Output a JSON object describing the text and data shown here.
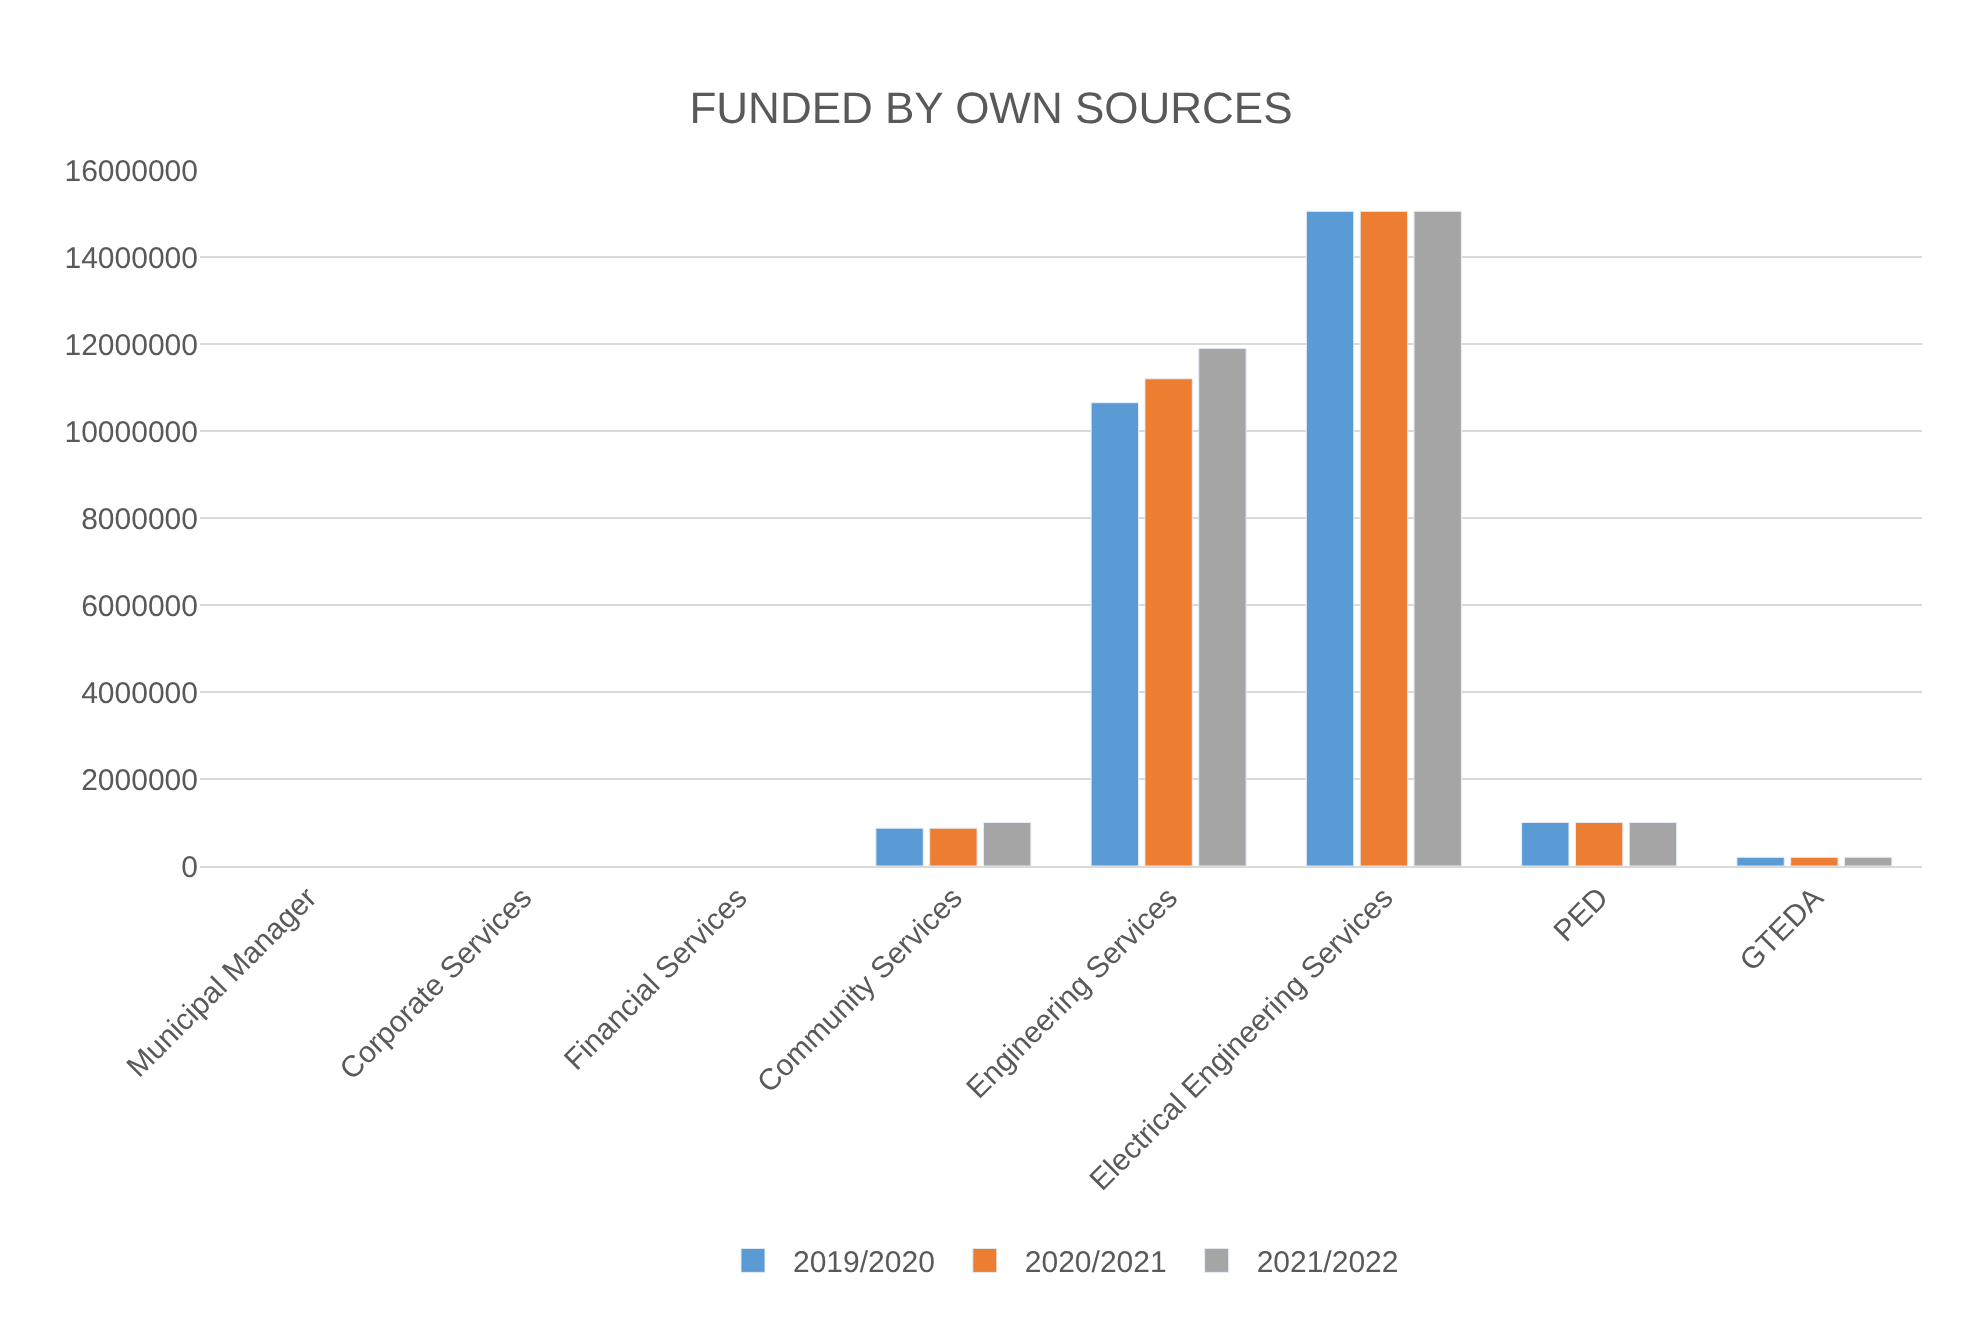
{
  "chart_data": {
    "type": "bar",
    "title": "FUNDED BY OWN SOURCES",
    "categories": [
      "Municipal Manager",
      "Corporate Services",
      "Financial Services",
      "Community Services",
      "Engineering Services",
      "Electrical Engineering Services",
      "PED",
      "GTEDA"
    ],
    "series": [
      {
        "name": "2019/2020",
        "color": "#5b9bd5",
        "values": [
          null,
          null,
          null,
          870000,
          10650000,
          15050000,
          1000000,
          200000
        ]
      },
      {
        "name": "2020/2021",
        "color": "#ed7d31",
        "values": [
          null,
          null,
          null,
          870000,
          11200000,
          15050000,
          1000000,
          200000
        ]
      },
      {
        "name": "2021/2022",
        "color": "#a5a5a5",
        "values": [
          null,
          null,
          null,
          1000000,
          11900000,
          15050000,
          1000000,
          200000
        ]
      }
    ],
    "ylim": [
      0,
      16000000
    ],
    "yticks": [
      0,
      2000000,
      4000000,
      6000000,
      8000000,
      10000000,
      12000000,
      14000000,
      16000000
    ],
    "grid": "y",
    "legend": "bottom"
  }
}
